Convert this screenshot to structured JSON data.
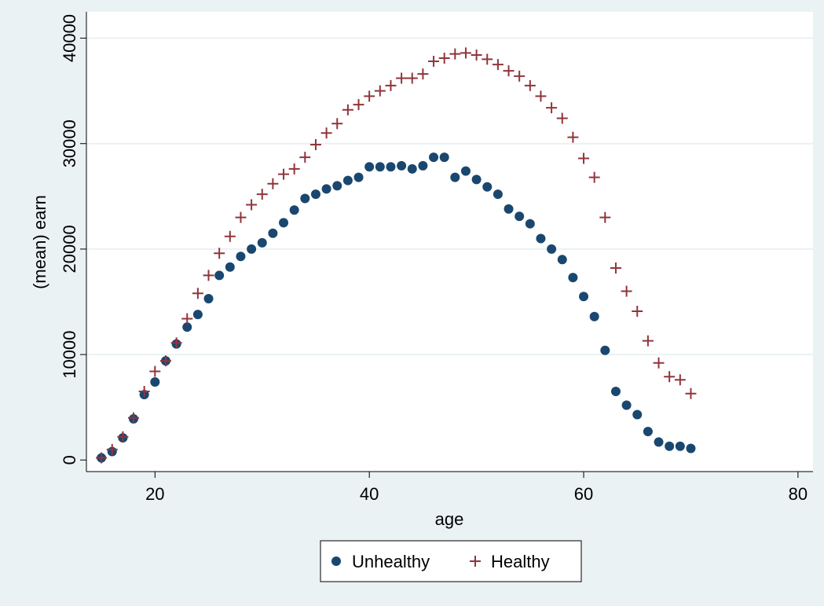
{
  "chart_data": {
    "type": "scatter",
    "x_label": "age",
    "y_label": "(mean) earn",
    "x": [
      15,
      16,
      17,
      18,
      19,
      20,
      21,
      22,
      23,
      24,
      25,
      26,
      27,
      28,
      29,
      30,
      31,
      32,
      33,
      34,
      35,
      36,
      37,
      38,
      39,
      40,
      41,
      42,
      43,
      44,
      45,
      46,
      47,
      48,
      49,
      50,
      51,
      52,
      53,
      54,
      55,
      56,
      57,
      58,
      59,
      60,
      61,
      62,
      63,
      64,
      65,
      66,
      67,
      68,
      69,
      70
    ],
    "series": [
      {
        "name": "Unhealthy",
        "color": "#1a476f",
        "marker": "circle",
        "values": [
          200,
          800,
          2100,
          3900,
          6200,
          7400,
          9400,
          11000,
          12600,
          13800,
          15300,
          17500,
          18300,
          19300,
          20000,
          20600,
          21500,
          22500,
          23700,
          24800,
          25200,
          25700,
          26000,
          26500,
          26800,
          27800,
          27800,
          27800,
          27900,
          27600,
          27900,
          28700,
          28700,
          26800,
          27400,
          26600,
          25900,
          25200,
          23800,
          23100,
          22400,
          21000,
          20000,
          19000,
          17300,
          15500,
          13600,
          10400,
          6500,
          5200,
          4300,
          2700,
          1700,
          1300,
          1300,
          1100
        ]
      },
      {
        "name": "Healthy",
        "color": "#90353b",
        "marker": "plus",
        "values": [
          200,
          1000,
          2200,
          4000,
          6500,
          8400,
          9400,
          11100,
          13400,
          15800,
          17500,
          19600,
          21200,
          23000,
          24200,
          25200,
          26200,
          27100,
          27600,
          28700,
          29900,
          31000,
          31900,
          33200,
          33700,
          34500,
          35000,
          35500,
          36200,
          36200,
          36600,
          37800,
          38100,
          38500,
          38600,
          38400,
          38000,
          37500,
          36900,
          36400,
          35500,
          34500,
          33400,
          32400,
          30600,
          28600,
          26800,
          23000,
          18200,
          16000,
          14100,
          11300,
          9200,
          7900,
          7600,
          6300
        ]
      }
    ],
    "xlim": [
      13.6,
      81.4
    ],
    "xticks": [
      20,
      40,
      60,
      80
    ],
    "ylim": [
      -1100,
      42500
    ],
    "yticks": [
      0,
      10000,
      20000,
      30000,
      40000
    ],
    "grid": true
  }
}
